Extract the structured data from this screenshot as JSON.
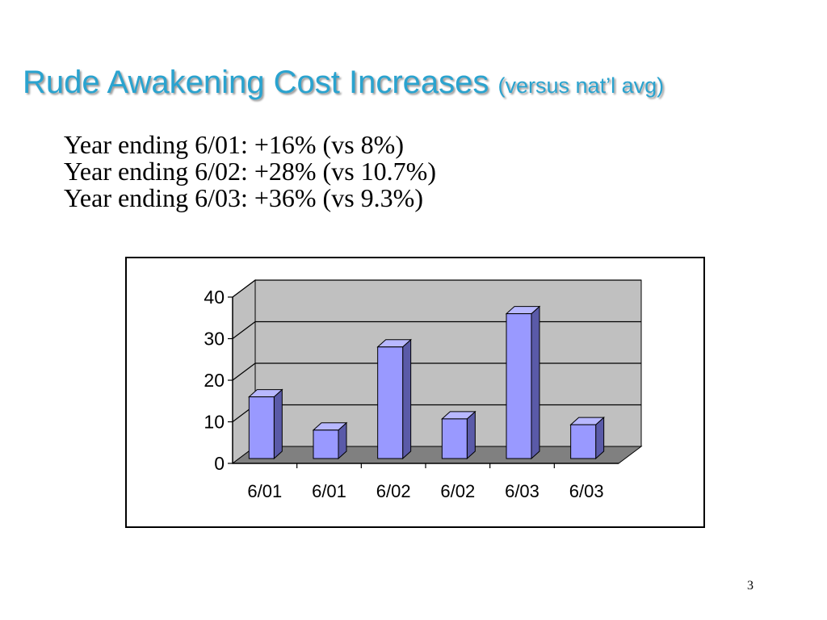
{
  "slide": {
    "title": "Rude Awakening Cost Increases",
    "title_sub": "(versus nat’l avg)",
    "lines": [
      "Year ending 6/01: +16% (vs 8%)",
      "Year ending 6/02: +28% (vs 10.7%)",
      "Year ending 6/03: +36% (vs 9.3%)"
    ],
    "page_number": "3"
  },
  "colors": {
    "title": "#2aa3cf",
    "bar_front": "#9999ff",
    "bar_top": "#b8b8ff",
    "bar_side": "#5a5aa8",
    "wall": "#c0c0c0",
    "floor": "#808080"
  },
  "chart_data": {
    "type": "bar",
    "style": "3d-column",
    "categories": [
      "6/01",
      "6/01",
      "6/02",
      "6/02",
      "6/03",
      "6/03"
    ],
    "values": [
      16,
      8,
      28,
      10.7,
      36,
      9.3
    ],
    "y_ticks": [
      "0",
      "10",
      "20",
      "30",
      "40"
    ],
    "ylim": [
      0,
      40
    ],
    "grid": true,
    "legend": "none"
  }
}
